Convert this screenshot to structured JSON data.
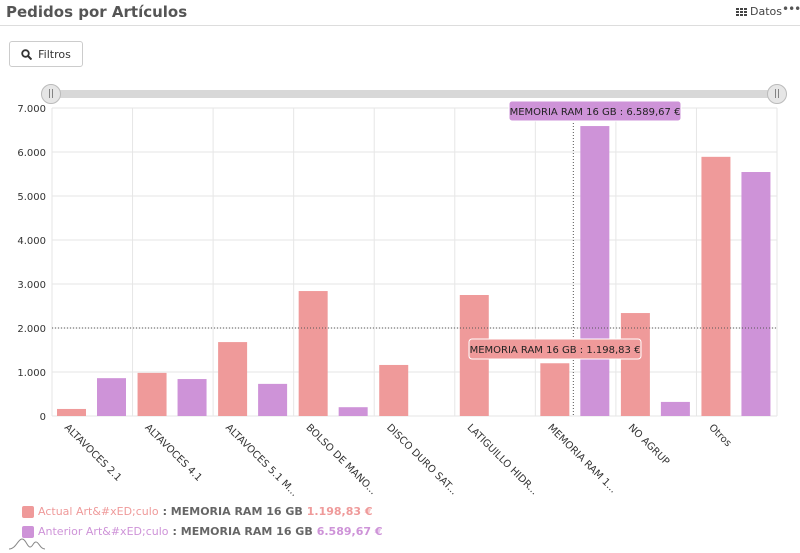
{
  "header": {
    "title": "Pedidos por Artículos",
    "datos_label": "Datos",
    "more_label": "•••"
  },
  "toolbar": {
    "filters_label": "Filtros"
  },
  "colors": {
    "actual": "#ef9a9a",
    "anterior": "#ce93d8"
  },
  "chart_data": {
    "type": "bar",
    "categories": [
      "ALTAVOCES 2.1",
      "ALTAVOCES 4.1",
      "ALTAVOCES 5.1 M...",
      "BOLSO DE MANO...",
      "DISCO DURO SAT...",
      "LATIGUILLO HIDR...",
      "MEMORIA RAM 1...",
      "NO AGRUP",
      "Otros"
    ],
    "series": [
      {
        "name": "Actual Art&#xED;culo",
        "values": [
          160,
          980,
          1680,
          2840,
          1160,
          2750,
          1198.83,
          2340,
          5890
        ]
      },
      {
        "name": "Anterior Art&#xED;culo",
        "values": [
          860,
          840,
          730,
          200,
          null,
          null,
          6589.67,
          320,
          5545
        ]
      }
    ],
    "ylim": [
      0,
      7000
    ],
    "yticks": [
      "0",
      "1.000",
      "2.000",
      "3.000",
      "4.000",
      "5.000",
      "6.000",
      "7.000"
    ],
    "reference_line": 2000,
    "grid": true,
    "tooltips": [
      "MEMORIA RAM 16 GB : 6.589,67 €",
      "MEMORIA RAM 16 GB : 1.198,83 €"
    ]
  },
  "legend": [
    {
      "series": "Actual Art&#xED;culo",
      "item": ": MEMORIA RAM 16 GB",
      "value": "1.198,83 €"
    },
    {
      "series": "Anterior Art&#xED;culo",
      "item": ": MEMORIA RAM 16 GB",
      "value": "6.589,67 €"
    }
  ]
}
